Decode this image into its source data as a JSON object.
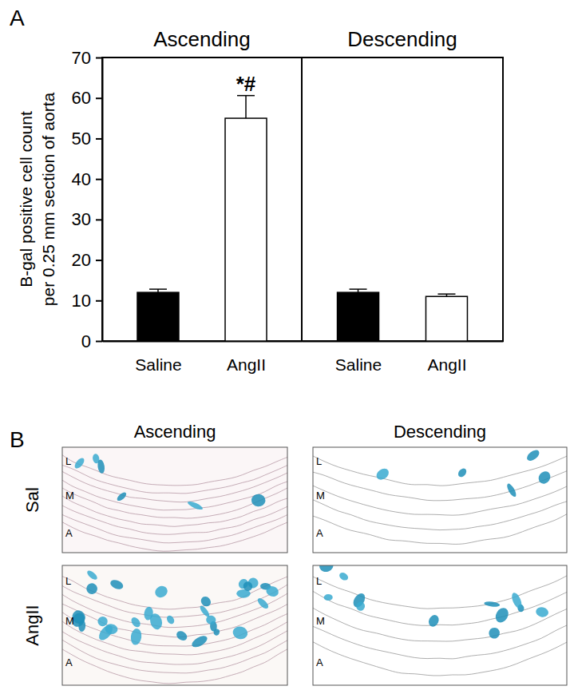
{
  "chart_data": [
    {
      "type": "bar",
      "title": "Ascending",
      "ylabel": "B-gal positive cell count\nper 0.25 mm section of aorta",
      "categories": [
        "Saline",
        "AngII"
      ],
      "values": [
        12,
        55
      ],
      "errors": [
        0.8,
        5.6
      ],
      "colors": [
        "#000000",
        "#ffffff"
      ],
      "ylim": [
        0,
        70
      ],
      "yticks": [
        0,
        10,
        20,
        30,
        40,
        50,
        60,
        70
      ],
      "annotations": [
        {
          "text": "*#",
          "category": 1
        }
      ]
    },
    {
      "type": "bar",
      "title": "Descending",
      "categories": [
        "Saline",
        "AngII"
      ],
      "values": [
        12,
        11
      ],
      "errors": [
        0.8,
        0.6
      ],
      "colors": [
        "#000000",
        "#ffffff"
      ],
      "ylim": [
        0,
        70
      ],
      "tick_labels": "x"
    }
  ],
  "panel_label": "A",
  "micrographs": {
    "panel_label": "B",
    "columns": [
      "Ascending",
      "Descending"
    ],
    "rows": [
      "Sal",
      "AngII"
    ],
    "layer_labels": [
      "L",
      "M",
      "A"
    ]
  }
}
